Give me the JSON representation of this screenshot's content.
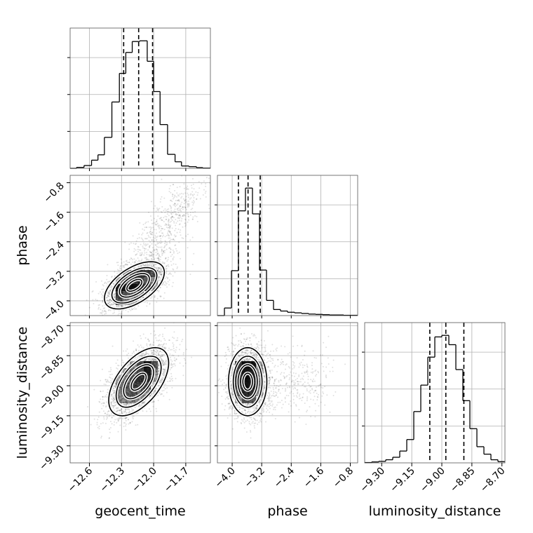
{
  "chart_data": {
    "type": "corner",
    "parameters": [
      "geocent_time",
      "phase",
      "luminosity_distance"
    ],
    "xlabels": [
      "geocent_time",
      "phase",
      "luminosity_distance"
    ],
    "ylabels": [
      "",
      "phase",
      "luminosity_distance"
    ],
    "ranges": {
      "geocent_time": [
        -12.78,
        -11.47
      ],
      "phase": [
        -4.4,
        -0.6
      ],
      "luminosity_distance": [
        -9.385,
        -8.685
      ]
    },
    "ticks": {
      "geocent_time": [
        -12.6,
        -12.3,
        -12.0,
        -11.7
      ],
      "phase": [
        -4.0,
        -3.2,
        -2.4,
        -1.6,
        -0.8
      ],
      "luminosity_distance": [
        -9.3,
        -9.15,
        -9.0,
        -8.85,
        -8.7
      ]
    },
    "tick_labels": {
      "geocent_time": [
        "−12.6",
        "−12.3",
        "−12.0",
        "−11.7"
      ],
      "phase": [
        "−4.0",
        "−3.2",
        "−2.4",
        "−1.6",
        "−0.8"
      ],
      "luminosity_distance": [
        "−9.30",
        "−9.15",
        "−9.00",
        "−8.85",
        "−8.70"
      ]
    },
    "quantiles": {
      "geocent_time": [
        -12.28,
        -12.14,
        -12.01
      ],
      "phase": [
        -3.83,
        -3.57,
        -3.24
      ],
      "luminosity_distance": [
        -9.06,
        -8.98,
        -8.89
      ]
    },
    "histograms": {
      "geocent_time": {
        "bin_edges": [
          -12.78,
          -12.72,
          -12.65,
          -12.58,
          -12.52,
          -12.46,
          -12.39,
          -12.32,
          -12.26,
          -12.2,
          -12.13,
          -12.06,
          -12.0,
          -11.94,
          -11.87,
          -11.8,
          -11.74,
          -11.67,
          -11.6,
          -11.54,
          -11.47
        ],
        "counts": [
          0,
          4,
          12,
          35,
          58,
          133,
          285,
          408,
          498,
          545,
          548,
          460,
          330,
          188,
          60,
          28,
          10,
          7,
          3,
          1
        ]
      },
      "phase": {
        "bin_edges": [
          -4.4,
          -4.21,
          -4.02,
          -3.83,
          -3.64,
          -3.45,
          -3.26,
          -3.07,
          -2.88,
          -2.69,
          -2.5,
          -2.31,
          -2.12,
          -1.93,
          -1.74,
          -1.55,
          -1.36,
          -1.17,
          -0.98,
          -0.79,
          -0.6
        ],
        "counts": [
          0,
          25,
          148,
          345,
          420,
          335,
          150,
          50,
          20,
          15,
          11,
          9,
          7,
          5,
          4,
          3,
          2,
          2,
          1,
          1
        ]
      },
      "luminosity_distance": {
        "bin_edges": [
          -9.385,
          -9.35,
          -9.315,
          -9.28,
          -9.245,
          -9.21,
          -9.175,
          -9.14,
          -9.105,
          -9.07,
          -9.035,
          -9.0,
          -8.965,
          -8.93,
          -8.895,
          -8.86,
          -8.825,
          -8.79,
          -8.755,
          -8.72,
          -8.685
        ],
        "counts": [
          1,
          3,
          5,
          10,
          18,
          38,
          75,
          165,
          250,
          340,
          405,
          410,
          380,
          300,
          200,
          110,
          52,
          28,
          10,
          4
        ]
      }
    },
    "joint": [
      {
        "x": "geocent_time",
        "y": "phase",
        "center": [
          -12.18,
          -3.58
        ],
        "sigma": [
          0.14,
          0.32
        ],
        "correlation": 0.55,
        "samples": 3000
      },
      {
        "x": "geocent_time",
        "y": "luminosity_distance",
        "center": [
          -12.14,
          -8.98
        ],
        "sigma": [
          0.14,
          0.085
        ],
        "correlation": 0.55,
        "samples": 3000
      },
      {
        "x": "phase",
        "y": "luminosity_distance",
        "center": [
          -3.58,
          -8.98
        ],
        "sigma": [
          0.26,
          0.085
        ],
        "correlation": 0.0,
        "samples": 3000
      }
    ],
    "grid": true,
    "legend": "none"
  }
}
